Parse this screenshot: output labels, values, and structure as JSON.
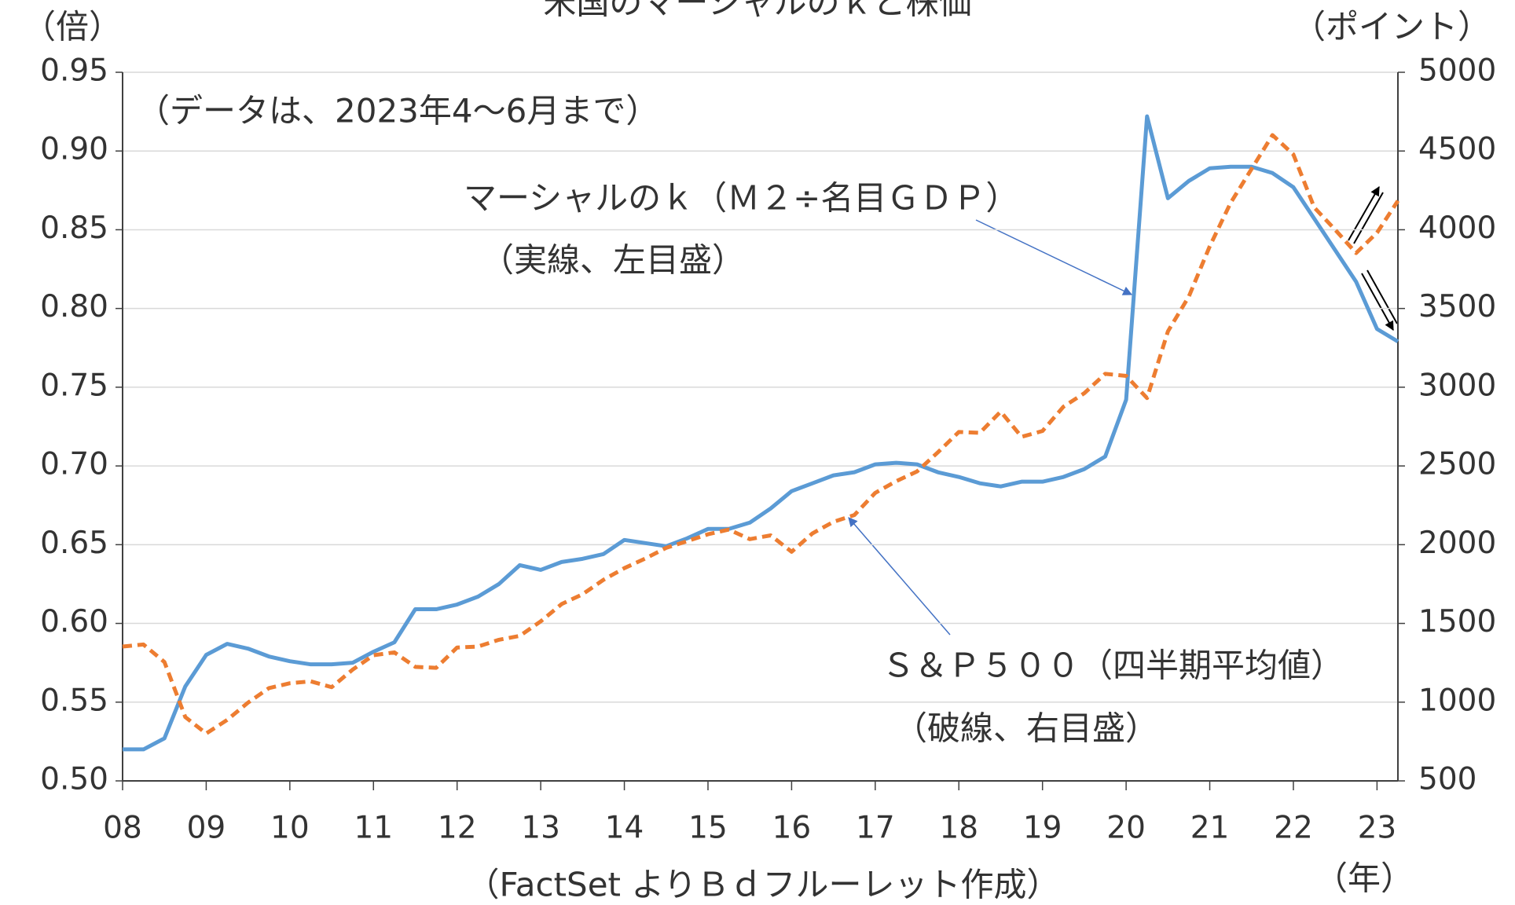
{
  "chart_data": {
    "type": "line",
    "title": "米国のマーシャルのｋと株価",
    "y_label": "（倍）",
    "y2_label": "（ポイント）",
    "x_label": "（年）",
    "source": "（FactSet よりＢｄフルーレット作成）",
    "annotations": [
      "（データは、2023年4～6月まで）",
      "マーシャルのｋ（Ｍ２÷名目ＧＤＰ）",
      "（実線、左目盛）",
      "Ｓ＆Ｐ５００（四半期平均値）",
      "（破線、右目盛）"
    ],
    "categories": [
      "08",
      null,
      null,
      null,
      "09",
      null,
      null,
      null,
      "10",
      null,
      null,
      null,
      "11",
      null,
      null,
      null,
      "12",
      null,
      null,
      null,
      "13",
      null,
      null,
      null,
      "14",
      null,
      null,
      null,
      "15",
      null,
      null,
      null,
      "16",
      null,
      null,
      null,
      "17",
      null,
      null,
      null,
      "18",
      null,
      null,
      null,
      "19",
      null,
      null,
      null,
      "20",
      null,
      null,
      null,
      "21",
      null,
      null,
      null,
      "22",
      null,
      null,
      null,
      "23",
      null
    ],
    "series": [
      {
        "name": "マーシャルのｋ",
        "color": "#5b9bd5",
        "axis": "y",
        "values": [
          0.52,
          0.52,
          0.527,
          0.56,
          0.58,
          0.587,
          0.584,
          0.579,
          0.576,
          0.574,
          0.574,
          0.575,
          0.582,
          0.588,
          0.609,
          0.609,
          0.612,
          0.617,
          0.625,
          0.637,
          0.634,
          0.639,
          0.641,
          0.644,
          0.653,
          0.651,
          0.649,
          0.654,
          0.66,
          0.66,
          0.664,
          0.673,
          0.684,
          0.689,
          0.694,
          0.696,
          0.701,
          0.702,
          0.701,
          0.696,
          0.693,
          0.689,
          0.687,
          0.69,
          0.69,
          0.693,
          0.698,
          0.706,
          0.742,
          0.922,
          0.87,
          0.881,
          0.889,
          0.89,
          0.89,
          0.886,
          0.877,
          0.857,
          0.837,
          0.817,
          0.787,
          0.779
        ]
      },
      {
        "name": "Ｓ＆Ｐ５００",
        "color": "#ed7d31",
        "axis": "y2",
        "dashed": true,
        "values": [
          1353,
          1366,
          1255,
          905,
          801,
          887,
          997,
          1089,
          1120,
          1132,
          1095,
          1206,
          1298,
          1316,
          1224,
          1218,
          1347,
          1353,
          1396,
          1421,
          1513,
          1623,
          1685,
          1777,
          1851,
          1912,
          1980,
          2022,
          2066,
          2096,
          2035,
          2059,
          1955,
          2072,
          2145,
          2188,
          2329,
          2403,
          2465,
          2587,
          2716,
          2710,
          2845,
          2685,
          2722,
          2876,
          2962,
          3085,
          3072,
          2931,
          3355,
          3576,
          3895,
          4171,
          4386,
          4601,
          4478,
          4141,
          4000,
          3852,
          3981,
          4184
        ]
      }
    ],
    "ylim": [
      0.5,
      0.95
    ],
    "yticks": [
      {
        "value": 0.5,
        "label": "0.50"
      },
      {
        "value": 0.55,
        "label": "0.55"
      },
      {
        "value": 0.6,
        "label": "0.60"
      },
      {
        "value": 0.65,
        "label": "0.65"
      },
      {
        "value": 0.7,
        "label": "0.70"
      },
      {
        "value": 0.75,
        "label": "0.75"
      },
      {
        "value": 0.8,
        "label": "0.80"
      },
      {
        "value": 0.85,
        "label": "0.85"
      },
      {
        "value": 0.9,
        "label": "0.90"
      },
      {
        "value": 0.95,
        "label": "0.95"
      }
    ],
    "y2lim": [
      500,
      5000
    ],
    "y2ticks": [
      500,
      1000,
      1500,
      2000,
      2500,
      3000,
      3500,
      4000,
      4500,
      5000
    ],
    "grid": true
  }
}
